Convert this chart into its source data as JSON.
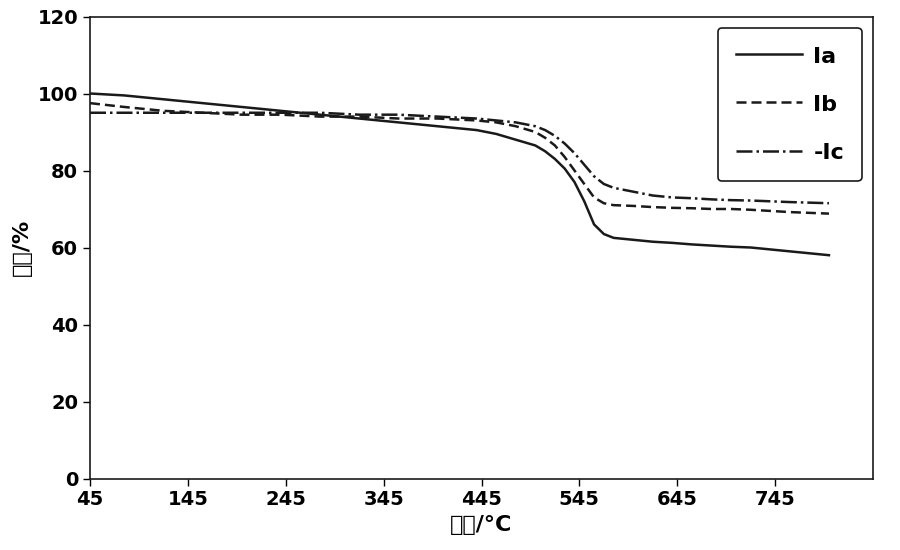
{
  "title": "",
  "xlabel": "温度/°C",
  "ylabel": "比例/%",
  "xlim": [
    45,
    845
  ],
  "ylim": [
    0,
    120
  ],
  "xticks": [
    45,
    145,
    245,
    345,
    445,
    545,
    645,
    745
  ],
  "yticks": [
    0,
    20,
    40,
    60,
    80,
    100,
    120
  ],
  "background_color": "#ffffff",
  "line_color": "#1a1a1a",
  "series": [
    {
      "label": "Ia",
      "linestyle": "solid",
      "linewidth": 1.8,
      "x": [
        45,
        80,
        120,
        160,
        200,
        240,
        280,
        320,
        360,
        400,
        440,
        460,
        480,
        500,
        510,
        520,
        530,
        540,
        550,
        560,
        570,
        580,
        600,
        620,
        640,
        660,
        680,
        700,
        720,
        740,
        760,
        800
      ],
      "y": [
        100,
        99.5,
        98.5,
        97.5,
        96.5,
        95.5,
        94.5,
        93.5,
        92.5,
        91.5,
        90.5,
        89.5,
        88.0,
        86.5,
        85.0,
        83.0,
        80.5,
        77.0,
        72.0,
        66.0,
        63.5,
        62.5,
        62.0,
        61.5,
        61.2,
        60.8,
        60.5,
        60.2,
        60.0,
        59.5,
        59.0,
        58.0
      ]
    },
    {
      "label": "Ib",
      "linestyle": "dashed",
      "linewidth": 1.8,
      "x": [
        45,
        80,
        120,
        160,
        200,
        240,
        280,
        320,
        360,
        400,
        440,
        460,
        480,
        500,
        510,
        520,
        530,
        540,
        550,
        560,
        570,
        580,
        600,
        620,
        640,
        660,
        680,
        700,
        720,
        740,
        760,
        800
      ],
      "y": [
        97.5,
        96.5,
        95.5,
        95.0,
        94.5,
        94.5,
        94.0,
        94.0,
        93.5,
        93.5,
        93.0,
        92.5,
        91.5,
        90.0,
        88.5,
        86.5,
        83.5,
        80.0,
        76.5,
        73.0,
        71.5,
        71.0,
        70.8,
        70.5,
        70.3,
        70.2,
        70.0,
        70.0,
        69.8,
        69.5,
        69.2,
        68.8
      ]
    },
    {
      "label": "-Ic",
      "linestyle": "dashdot",
      "linewidth": 1.8,
      "x": [
        45,
        80,
        120,
        160,
        200,
        240,
        280,
        320,
        360,
        400,
        440,
        460,
        480,
        500,
        510,
        520,
        530,
        540,
        550,
        560,
        570,
        580,
        600,
        620,
        640,
        660,
        680,
        700,
        720,
        740,
        760,
        800
      ],
      "y": [
        95.0,
        95.0,
        95.0,
        95.0,
        95.0,
        95.0,
        95.0,
        94.5,
        94.5,
        94.0,
        93.5,
        93.0,
        92.5,
        91.5,
        90.5,
        89.0,
        87.0,
        84.5,
        81.5,
        78.5,
        76.5,
        75.5,
        74.5,
        73.5,
        73.0,
        72.8,
        72.5,
        72.3,
        72.2,
        72.0,
        71.8,
        71.5
      ]
    }
  ],
  "legend_labels": [
    "Ia",
    "Ib",
    "-Ic"
  ],
  "legend_loc": "upper right",
  "font_size": 15,
  "tick_font_size": 14,
  "label_font_size": 16,
  "legend_fontsize": 16
}
